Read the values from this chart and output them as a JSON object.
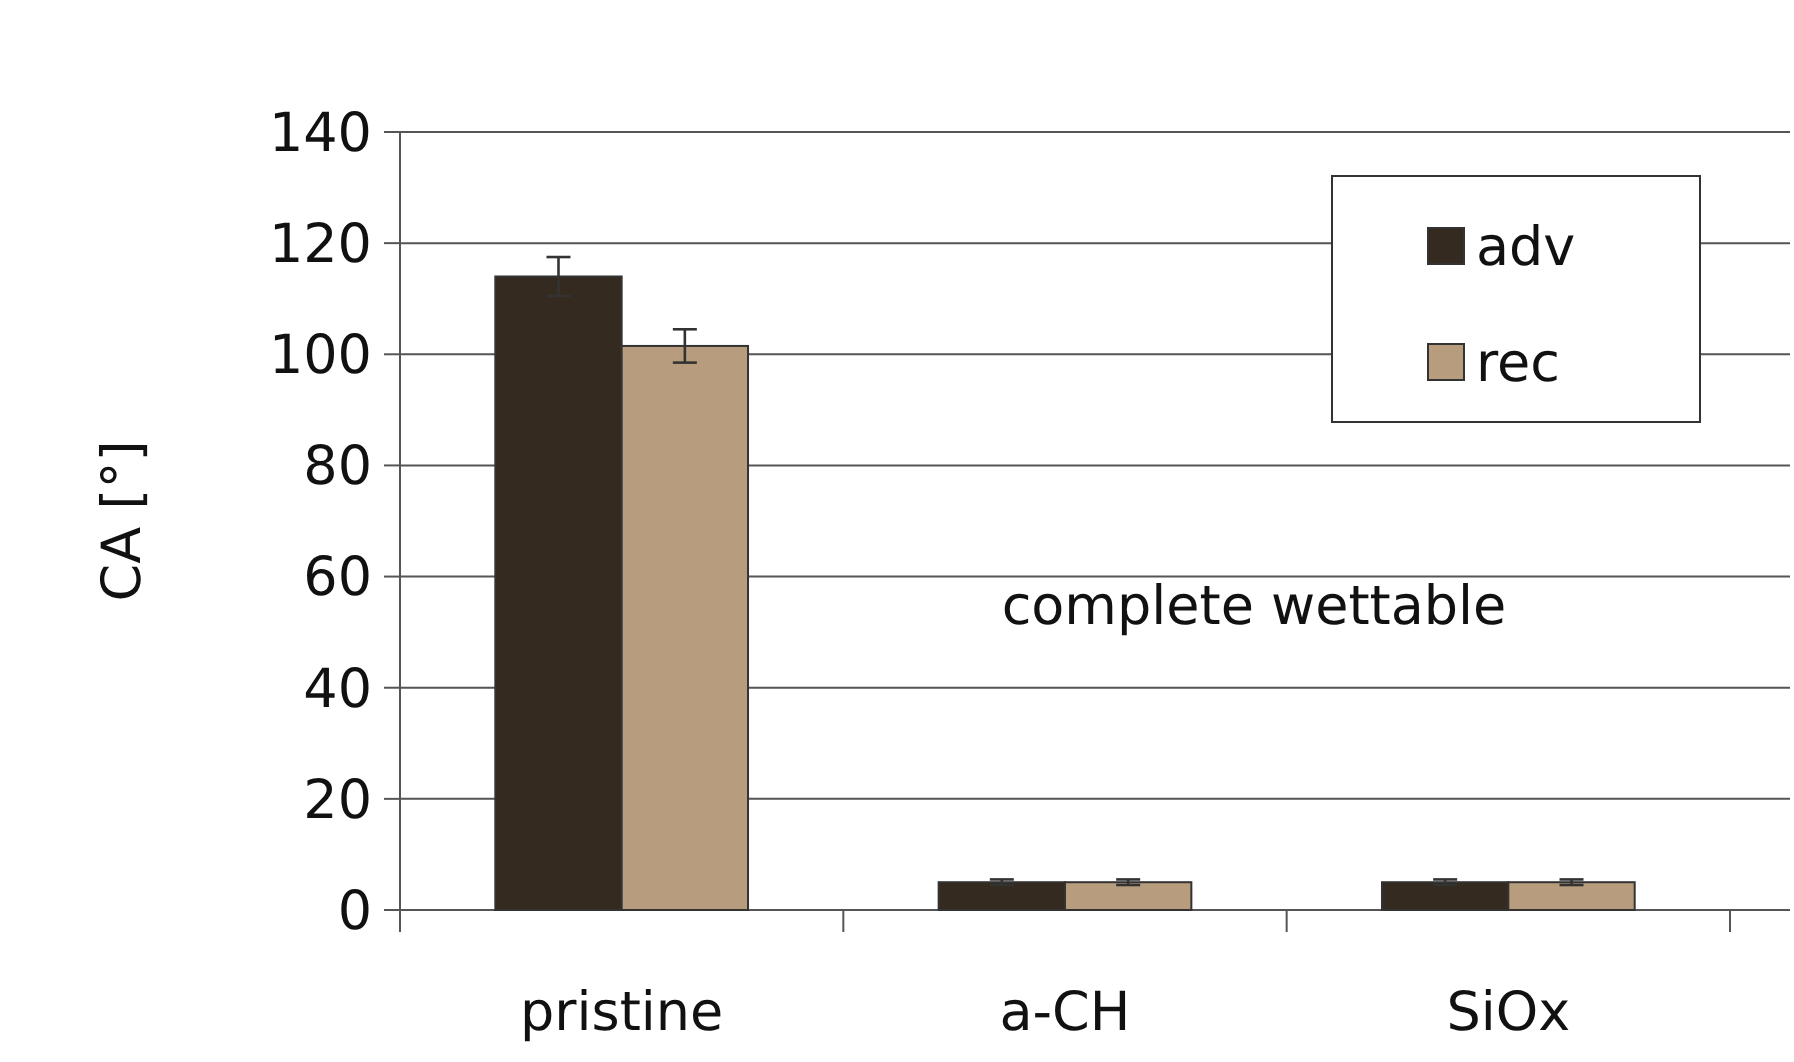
{
  "chart_data": {
    "type": "bar",
    "ylabel": "CA [°]",
    "categories": [
      "pristine",
      "a-CH",
      "SiOx"
    ],
    "series": [
      {
        "name": "adv",
        "color": "#342a1f",
        "values": [
          114,
          5,
          5
        ],
        "errors": [
          3.5,
          0.5,
          0.5
        ]
      },
      {
        "name": "rec",
        "color": "#b89c7e",
        "values": [
          101.5,
          5,
          5
        ],
        "errors": [
          3,
          0.5,
          0.5
        ]
      }
    ],
    "ylim": [
      0,
      140
    ],
    "yticks": [
      0,
      20,
      40,
      60,
      80,
      100,
      120,
      140
    ],
    "grid": "y",
    "legend": "top right",
    "annotations": [
      "complete wettable"
    ]
  }
}
